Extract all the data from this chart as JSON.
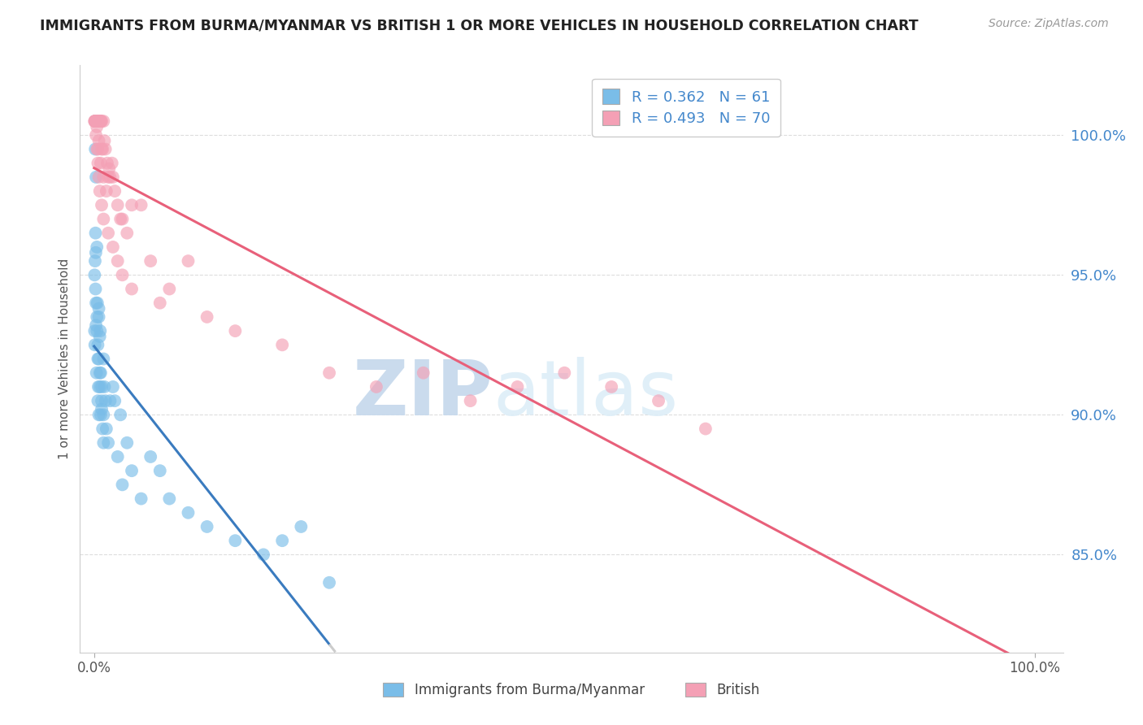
{
  "title": "IMMIGRANTS FROM BURMA/MYANMAR VS BRITISH 1 OR MORE VEHICLES IN HOUSEHOLD CORRELATION CHART",
  "source": "Source: ZipAtlas.com",
  "ylabel": "1 or more Vehicles in Household",
  "blue_R": 0.362,
  "blue_N": 61,
  "pink_R": 0.493,
  "pink_N": 70,
  "blue_color": "#7abde8",
  "pink_color": "#f4a0b5",
  "blue_line_color": "#3a7bbf",
  "pink_line_color": "#e8607a",
  "watermark_color": "#cde4f5",
  "background_color": "#ffffff",
  "legend_label_blue": "Immigrants from Burma/Myanmar",
  "legend_label_pink": "British",
  "ytick_positions": [
    85.0,
    90.0,
    95.0,
    100.0
  ],
  "ytick_labels": [
    "85.0%",
    "90.0%",
    "95.0%",
    "100.0%"
  ],
  "ylim": [
    81.5,
    102.5
  ],
  "xlim": [
    -1.5,
    103.0
  ],
  "blue_x": [
    0.05,
    0.08,
    0.1,
    0.12,
    0.15,
    0.18,
    0.2,
    0.2,
    0.25,
    0.3,
    0.3,
    0.35,
    0.4,
    0.4,
    0.45,
    0.5,
    0.5,
    0.5,
    0.6,
    0.6,
    0.65,
    0.7,
    0.7,
    0.8,
    0.8,
    0.9,
    1.0,
    1.0,
    1.1,
    1.2,
    1.3,
    1.5,
    1.7,
    2.0,
    2.2,
    2.5,
    2.8,
    3.0,
    3.5,
    4.0,
    5.0,
    6.0,
    7.0,
    8.0,
    10.0,
    12.0,
    15.0,
    18.0,
    20.0,
    22.0,
    25.0,
    0.05,
    0.1,
    0.15,
    0.2,
    0.3,
    0.4,
    0.5,
    0.6,
    0.8,
    1.0
  ],
  "blue_y": [
    93.0,
    92.5,
    100.5,
    99.5,
    96.5,
    95.8,
    98.5,
    93.2,
    91.5,
    93.0,
    96.0,
    94.0,
    92.5,
    90.5,
    91.0,
    93.5,
    92.0,
    90.0,
    92.8,
    91.0,
    93.0,
    91.5,
    90.0,
    91.0,
    90.2,
    89.5,
    90.0,
    89.0,
    91.0,
    90.5,
    89.5,
    89.0,
    90.5,
    91.0,
    90.5,
    88.5,
    90.0,
    87.5,
    89.0,
    88.0,
    87.0,
    88.5,
    88.0,
    87.0,
    86.5,
    86.0,
    85.5,
    85.0,
    85.5,
    86.0,
    84.0,
    95.0,
    95.5,
    94.5,
    94.0,
    93.5,
    92.0,
    93.8,
    91.5,
    90.5,
    92.0
  ],
  "pink_x": [
    0.05,
    0.1,
    0.15,
    0.2,
    0.25,
    0.3,
    0.3,
    0.35,
    0.4,
    0.4,
    0.45,
    0.5,
    0.5,
    0.55,
    0.6,
    0.65,
    0.7,
    0.7,
    0.75,
    0.8,
    0.8,
    0.9,
    1.0,
    1.0,
    1.1,
    1.2,
    1.3,
    1.4,
    1.5,
    1.6,
    1.7,
    1.9,
    2.0,
    2.2,
    2.5,
    2.8,
    3.0,
    3.5,
    4.0,
    5.0,
    6.0,
    7.0,
    8.0,
    10.0,
    12.0,
    15.0,
    20.0,
    25.0,
    30.0,
    35.0,
    40.0,
    45.0,
    50.0,
    55.0,
    60.0,
    65.0,
    0.05,
    0.1,
    0.2,
    0.3,
    0.4,
    0.5,
    0.6,
    0.8,
    1.0,
    1.5,
    2.0,
    2.5,
    3.0,
    4.0
  ],
  "pink_y": [
    100.5,
    100.5,
    100.5,
    100.5,
    100.5,
    100.5,
    100.3,
    100.5,
    100.5,
    99.5,
    100.5,
    100.5,
    99.8,
    100.5,
    100.5,
    100.5,
    100.5,
    99.0,
    100.5,
    100.5,
    99.5,
    99.5,
    100.5,
    98.5,
    99.8,
    99.5,
    98.0,
    99.0,
    98.5,
    98.8,
    98.5,
    99.0,
    98.5,
    98.0,
    97.5,
    97.0,
    97.0,
    96.5,
    97.5,
    97.5,
    95.5,
    94.0,
    94.5,
    95.5,
    93.5,
    93.0,
    92.5,
    91.5,
    91.0,
    91.5,
    90.5,
    91.0,
    91.5,
    91.0,
    90.5,
    89.5,
    100.5,
    100.5,
    100.0,
    99.5,
    99.0,
    98.5,
    98.0,
    97.5,
    97.0,
    96.5,
    96.0,
    95.5,
    95.0,
    94.5
  ]
}
